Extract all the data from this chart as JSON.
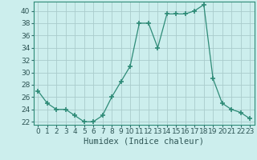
{
  "x": [
    0,
    1,
    2,
    3,
    4,
    5,
    6,
    7,
    8,
    9,
    10,
    11,
    12,
    13,
    14,
    15,
    16,
    17,
    18,
    19,
    20,
    21,
    22,
    23
  ],
  "y": [
    27,
    25,
    24,
    24,
    23,
    22,
    22,
    23,
    26,
    28.5,
    31,
    38,
    38,
    34,
    39.5,
    39.5,
    39.5,
    40,
    41,
    29,
    25,
    24,
    23.5,
    22.5
  ],
  "line_color": "#2e8b77",
  "marker": "+",
  "marker_size": 4,
  "bg_color": "#cceeed",
  "grid_color_major": "#aacccc",
  "grid_color_minor": "#bbdddd",
  "xlabel": "Humidex (Indice chaleur)",
  "ylim": [
    21.5,
    41.5
  ],
  "xlim": [
    -0.5,
    23.5
  ],
  "yticks": [
    22,
    24,
    26,
    28,
    30,
    32,
    34,
    36,
    38,
    40
  ],
  "xticks": [
    0,
    1,
    2,
    3,
    4,
    5,
    6,
    7,
    8,
    9,
    10,
    11,
    12,
    13,
    14,
    15,
    16,
    17,
    18,
    19,
    20,
    21,
    22,
    23
  ],
  "tick_label_fontsize": 6.5,
  "xlabel_fontsize": 7.5,
  "tick_color": "#2e6b6b",
  "label_color": "#2e5555"
}
